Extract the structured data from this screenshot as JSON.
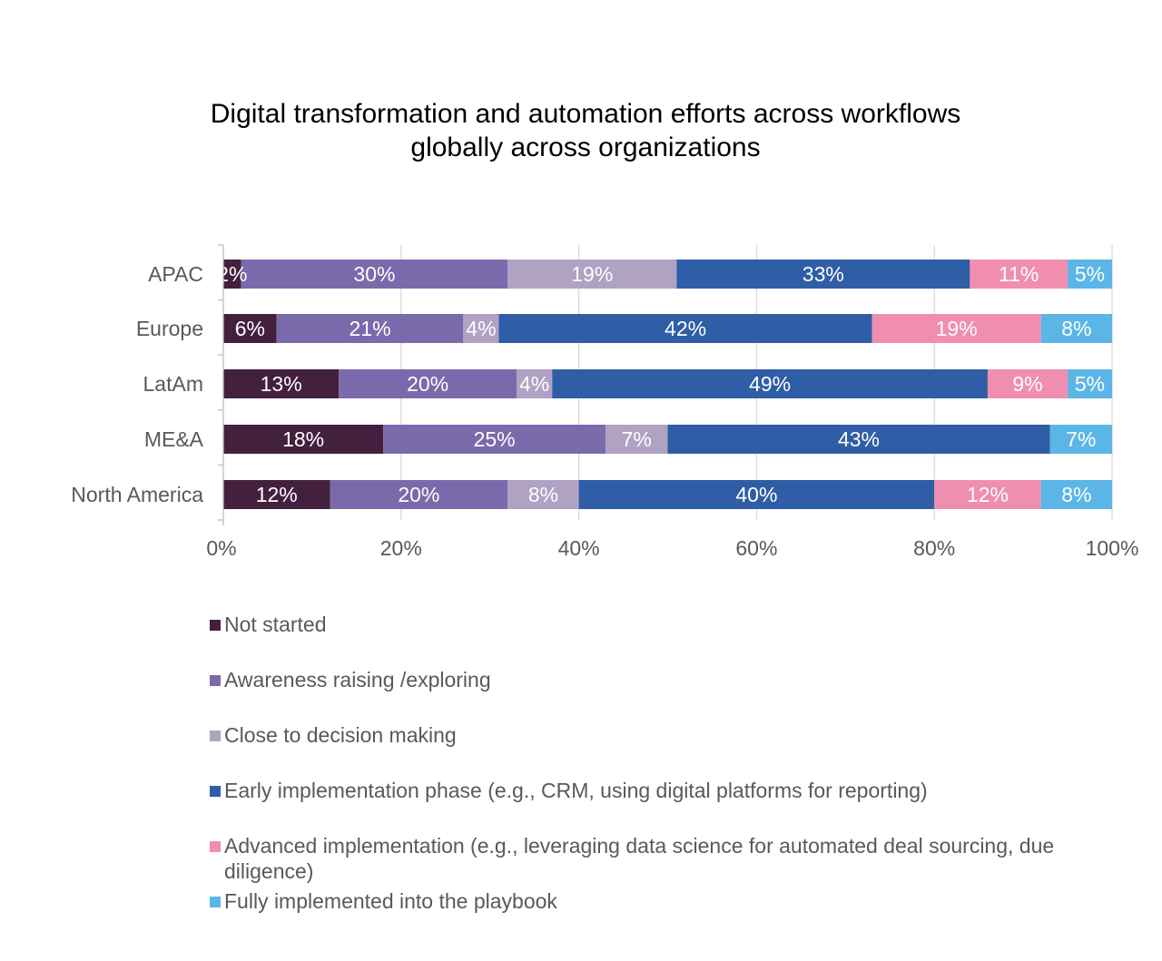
{
  "chart_data": {
    "type": "bar",
    "orientation": "horizontal",
    "stacked": true,
    "title": "Digital transformation and automation efforts across workflows globally across organizations",
    "title_lines": [
      "Digital transformation and automation efforts across workflows",
      "globally across organizations"
    ],
    "categories": [
      "APAC",
      "Europe",
      "LatAm",
      "ME&A",
      "North America"
    ],
    "series": [
      {
        "name": "Not started",
        "color": "#44203f",
        "values": [
          2,
          6,
          13,
          18,
          12
        ]
      },
      {
        "name": "Awareness raising /exploring",
        "color": "#7b6aab",
        "values": [
          30,
          21,
          20,
          25,
          20
        ]
      },
      {
        "name": "Close to decision making",
        "color": "#b0a2c3",
        "values": [
          19,
          4,
          4,
          7,
          8
        ]
      },
      {
        "name": "Early implementation phase (e.g., CRM, using digital platforms for reporting)",
        "color": "#2f5ea6",
        "values": [
          33,
          42,
          49,
          43,
          40
        ]
      },
      {
        "name": "Advanced implementation (e.g., leveraging data science for automated deal sourcing, due diligence)",
        "color": "#f08eb1",
        "values": [
          11,
          19,
          9,
          0,
          12
        ]
      },
      {
        "name": "Fully implemented into the playbook",
        "color": "#5bb6e6",
        "values": [
          5,
          8,
          5,
          7,
          8
        ]
      }
    ],
    "data_labels": [
      [
        "2%",
        "30%",
        "19%",
        "33%",
        "11%",
        "5%"
      ],
      [
        "6%",
        "21%",
        "4%",
        "42%",
        "19%",
        "8%"
      ],
      [
        "13%",
        "20%",
        "4%",
        "49%",
        "9%",
        "5%"
      ],
      [
        "18%",
        "25%",
        "7%",
        "43%",
        "",
        "7%"
      ],
      [
        "12%",
        "20%",
        "8%",
        "40%",
        "12%",
        "8%"
      ]
    ],
    "x_ticks": [
      "0%",
      "20%",
      "40%",
      "60%",
      "80%",
      "100%"
    ],
    "xlim": [
      0,
      100
    ],
    "xlabel": "",
    "ylabel": "",
    "grid": true,
    "legend_position": "bottom",
    "legend_labels": [
      [
        "Not started"
      ],
      [
        "Awareness raising /exploring"
      ],
      [
        "Close to decision making"
      ],
      [
        "Early implementation phase (e.g., CRM, using digital platforms for reporting)"
      ],
      [
        "Advanced implementation (e.g., leveraging data science for automated deal sourcing, due",
        "diligence)"
      ],
      [
        "Fully implemented into the playbook"
      ]
    ]
  }
}
